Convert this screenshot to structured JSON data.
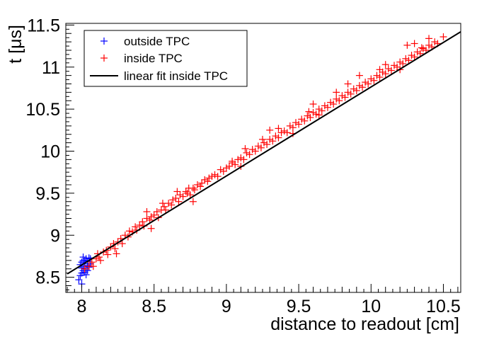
{
  "chart_data": {
    "type": "scatter",
    "title": "",
    "xlabel": "distance to readout [cm]",
    "ylabel": "t [μs]",
    "xlim": [
      7.89,
      10.62
    ],
    "ylim": [
      8.32,
      11.52
    ],
    "grid": false,
    "legend_position": "top-left",
    "x_ticks": [
      "8",
      "8.5",
      "9",
      "9.5",
      "10",
      "10.5"
    ],
    "y_ticks": [
      "8.5",
      "9",
      "9.5",
      "10",
      "10.5",
      "11",
      "11.5"
    ],
    "series": [
      {
        "name": "outside TPC",
        "marker": "+",
        "color": "#0000ff",
        "points": [
          [
            7.98,
            8.47
          ],
          [
            7.99,
            8.52
          ],
          [
            8.0,
            8.55
          ],
          [
            8.01,
            8.58
          ],
          [
            8.0,
            8.61
          ],
          [
            8.01,
            8.63
          ],
          [
            8.02,
            8.66
          ],
          [
            8.0,
            8.68
          ],
          [
            8.02,
            8.7
          ],
          [
            8.03,
            8.72
          ],
          [
            8.01,
            8.74
          ],
          [
            8.03,
            8.6
          ],
          [
            8.04,
            8.64
          ],
          [
            8.02,
            8.56
          ],
          [
            8.04,
            8.69
          ],
          [
            8.05,
            8.62
          ],
          [
            8.03,
            8.53
          ],
          [
            8.05,
            8.73
          ],
          [
            7.99,
            8.65
          ],
          [
            8.0,
            8.42
          ],
          [
            8.06,
            8.66
          ],
          [
            8.04,
            8.58
          ],
          [
            8.01,
            8.7
          ],
          [
            8.06,
            8.72
          ]
        ]
      },
      {
        "name": "inside TPC",
        "marker": "+",
        "color": "#ff0000",
        "points": [
          [
            8.02,
            8.6
          ],
          [
            8.05,
            8.63
          ],
          [
            8.07,
            8.68
          ],
          [
            8.08,
            8.63
          ],
          [
            8.1,
            8.72
          ],
          [
            8.12,
            8.74
          ],
          [
            8.13,
            8.7
          ],
          [
            8.15,
            8.8
          ],
          [
            8.17,
            8.82
          ],
          [
            8.18,
            8.77
          ],
          [
            8.2,
            8.86
          ],
          [
            8.22,
            8.9
          ],
          [
            8.23,
            8.84
          ],
          [
            8.25,
            8.92
          ],
          [
            8.27,
            8.96
          ],
          [
            8.28,
            8.9
          ],
          [
            8.3,
            9.0
          ],
          [
            8.32,
            8.98
          ],
          [
            8.33,
            9.05
          ],
          [
            8.35,
            9.04
          ],
          [
            8.37,
            9.1
          ],
          [
            8.38,
            9.06
          ],
          [
            8.4,
            9.12
          ],
          [
            8.42,
            9.16
          ],
          [
            8.43,
            9.11
          ],
          [
            8.45,
            9.2
          ],
          [
            8.47,
            9.18
          ],
          [
            8.48,
            9.22
          ],
          [
            8.5,
            9.24
          ],
          [
            8.52,
            9.28
          ],
          [
            8.53,
            9.21
          ],
          [
            8.55,
            9.3
          ],
          [
            8.57,
            9.34
          ],
          [
            8.58,
            9.3
          ],
          [
            8.6,
            9.38
          ],
          [
            8.62,
            9.36
          ],
          [
            8.63,
            9.42
          ],
          [
            8.65,
            9.44
          ],
          [
            8.67,
            9.4
          ],
          [
            8.68,
            9.48
          ],
          [
            8.7,
            9.46
          ],
          [
            8.72,
            9.52
          ],
          [
            8.73,
            9.5
          ],
          [
            8.75,
            9.48
          ],
          [
            8.77,
            9.56
          ],
          [
            8.78,
            9.54
          ],
          [
            8.8,
            9.6
          ],
          [
            8.82,
            9.58
          ],
          [
            8.83,
            9.62
          ],
          [
            8.85,
            9.66
          ],
          [
            8.87,
            9.64
          ],
          [
            8.88,
            9.68
          ],
          [
            8.9,
            9.7
          ],
          [
            8.92,
            9.72
          ],
          [
            8.94,
            9.7
          ],
          [
            8.96,
            9.78
          ],
          [
            8.98,
            9.76
          ],
          [
            9.0,
            9.8
          ],
          [
            9.02,
            9.82
          ],
          [
            9.04,
            9.86
          ],
          [
            9.06,
            9.84
          ],
          [
            9.08,
            9.9
          ],
          [
            9.1,
            9.92
          ],
          [
            9.12,
            9.9
          ],
          [
            9.14,
            9.98
          ],
          [
            9.16,
            9.96
          ],
          [
            9.18,
            10.02
          ],
          [
            9.2,
            10.0
          ],
          [
            9.22,
            10.06
          ],
          [
            9.24,
            10.04
          ],
          [
            9.26,
            10.1
          ],
          [
            9.28,
            10.08
          ],
          [
            9.3,
            10.14
          ],
          [
            9.32,
            10.12
          ],
          [
            9.34,
            10.18
          ],
          [
            9.36,
            10.16
          ],
          [
            9.38,
            10.22
          ],
          [
            9.4,
            10.24
          ],
          [
            9.42,
            10.22
          ],
          [
            9.44,
            10.3
          ],
          [
            9.46,
            10.28
          ],
          [
            9.48,
            10.34
          ],
          [
            9.5,
            10.32
          ],
          [
            9.52,
            10.38
          ],
          [
            9.54,
            10.36
          ],
          [
            9.56,
            10.42
          ],
          [
            9.58,
            10.4
          ],
          [
            9.6,
            10.46
          ],
          [
            9.62,
            10.44
          ],
          [
            9.64,
            10.5
          ],
          [
            9.66,
            10.48
          ],
          [
            9.68,
            10.54
          ],
          [
            9.7,
            10.52
          ],
          [
            9.72,
            10.58
          ],
          [
            9.74,
            10.56
          ],
          [
            9.76,
            10.62
          ],
          [
            9.78,
            10.6
          ],
          [
            9.8,
            10.66
          ],
          [
            9.82,
            10.64
          ],
          [
            9.84,
            10.7
          ],
          [
            9.86,
            10.68
          ],
          [
            9.88,
            10.74
          ],
          [
            9.9,
            10.72
          ],
          [
            9.92,
            10.78
          ],
          [
            9.94,
            10.76
          ],
          [
            9.96,
            10.82
          ],
          [
            9.98,
            10.8
          ],
          [
            10.0,
            10.86
          ],
          [
            10.02,
            10.84
          ],
          [
            10.04,
            10.9
          ],
          [
            10.06,
            10.88
          ],
          [
            10.08,
            10.94
          ],
          [
            10.1,
            10.92
          ],
          [
            10.12,
            10.98
          ],
          [
            10.14,
            10.96
          ],
          [
            10.16,
            11.02
          ],
          [
            10.18,
            11.0
          ],
          [
            10.2,
            11.06
          ],
          [
            10.22,
            11.04
          ],
          [
            10.24,
            11.1
          ],
          [
            10.26,
            11.08
          ],
          [
            10.28,
            11.14
          ],
          [
            10.3,
            11.12
          ],
          [
            10.32,
            11.18
          ],
          [
            10.34,
            11.16
          ],
          [
            10.36,
            11.22
          ],
          [
            10.38,
            11.2
          ],
          [
            10.4,
            11.26
          ],
          [
            10.42,
            11.24
          ],
          [
            10.44,
            11.3
          ],
          [
            10.46,
            11.28
          ],
          [
            10.5,
            11.36
          ],
          [
            8.24,
            8.78
          ],
          [
            8.45,
            9.28
          ],
          [
            8.66,
            9.52
          ],
          [
            9.1,
            9.82
          ],
          [
            9.25,
            10.14
          ],
          [
            9.46,
            10.21
          ],
          [
            9.64,
            10.43
          ],
          [
            9.84,
            10.8
          ],
          [
            10.06,
            10.97
          ],
          [
            10.25,
            11.26
          ],
          [
            8.11,
            8.78
          ],
          [
            8.56,
            9.38
          ],
          [
            8.74,
            9.56
          ],
          [
            9.04,
            9.88
          ],
          [
            9.36,
            10.27
          ],
          [
            9.57,
            10.47
          ],
          [
            9.76,
            10.7
          ],
          [
            10.1,
            11.03
          ],
          [
            10.3,
            11.28
          ],
          [
            10.4,
            11.34
          ],
          [
            9.3,
            10.25
          ],
          [
            9.6,
            10.56
          ],
          [
            9.92,
            10.9
          ],
          [
            8.48,
            9.08
          ],
          [
            8.77,
            9.4
          ],
          [
            9.13,
            10.03
          ],
          [
            10.35,
            11.23
          ],
          [
            10.2,
            10.97
          ]
        ]
      }
    ],
    "fit": {
      "name": "linear fit inside TPC",
      "color": "#000000",
      "x": [
        7.9,
        10.62
      ],
      "y": [
        8.54,
        11.42
      ]
    }
  }
}
